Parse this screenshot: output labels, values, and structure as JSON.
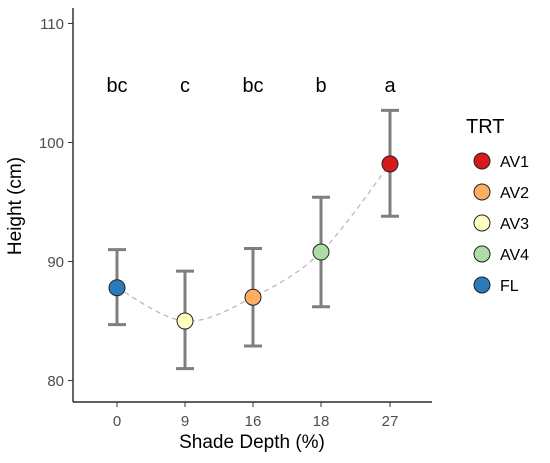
{
  "chart_data": {
    "type": "scatter",
    "xlabel": "Shade Depth (%)",
    "ylabel": "Height (cm)",
    "ylim": [
      78.2,
      111.3
    ],
    "yticks": [
      80,
      90,
      100,
      110
    ],
    "categories": [
      "0",
      "9",
      "16",
      "18",
      "27"
    ],
    "series": [
      {
        "name": "FL",
        "category": "0",
        "value": 87.8,
        "error_low": 84.7,
        "error_high": 91.0,
        "group_label": "bc",
        "color": "#2b7bba"
      },
      {
        "name": "AV3",
        "category": "9",
        "value": 85.0,
        "error_low": 81.0,
        "error_high": 89.2,
        "group_label": "c",
        "color": "#ffffbf"
      },
      {
        "name": "AV2",
        "category": "16",
        "value": 87.0,
        "error_low": 82.9,
        "error_high": 91.1,
        "group_label": "bc",
        "color": "#fdae61"
      },
      {
        "name": "AV4",
        "category": "18",
        "value": 90.8,
        "error_low": 86.2,
        "error_high": 95.4,
        "group_label": "b",
        "color": "#abdda4"
      },
      {
        "name": "AV1",
        "category": "27",
        "value": 98.2,
        "error_low": 93.8,
        "error_high": 102.7,
        "group_label": "a",
        "color": "#d7191c"
      }
    ],
    "connector": {
      "style": "dashed",
      "color": "#bbbbbb"
    },
    "errorbar_color": "#7f7f7f",
    "legend": {
      "title": "TRT",
      "placement": "right",
      "entries": [
        {
          "label": "AV1",
          "color": "#d7191c"
        },
        {
          "label": "AV2",
          "color": "#fdae61"
        },
        {
          "label": "AV3",
          "color": "#ffffbf"
        },
        {
          "label": "AV4",
          "color": "#abdda4"
        },
        {
          "label": "FL",
          "color": "#2b7bba"
        }
      ]
    },
    "grid": false
  }
}
